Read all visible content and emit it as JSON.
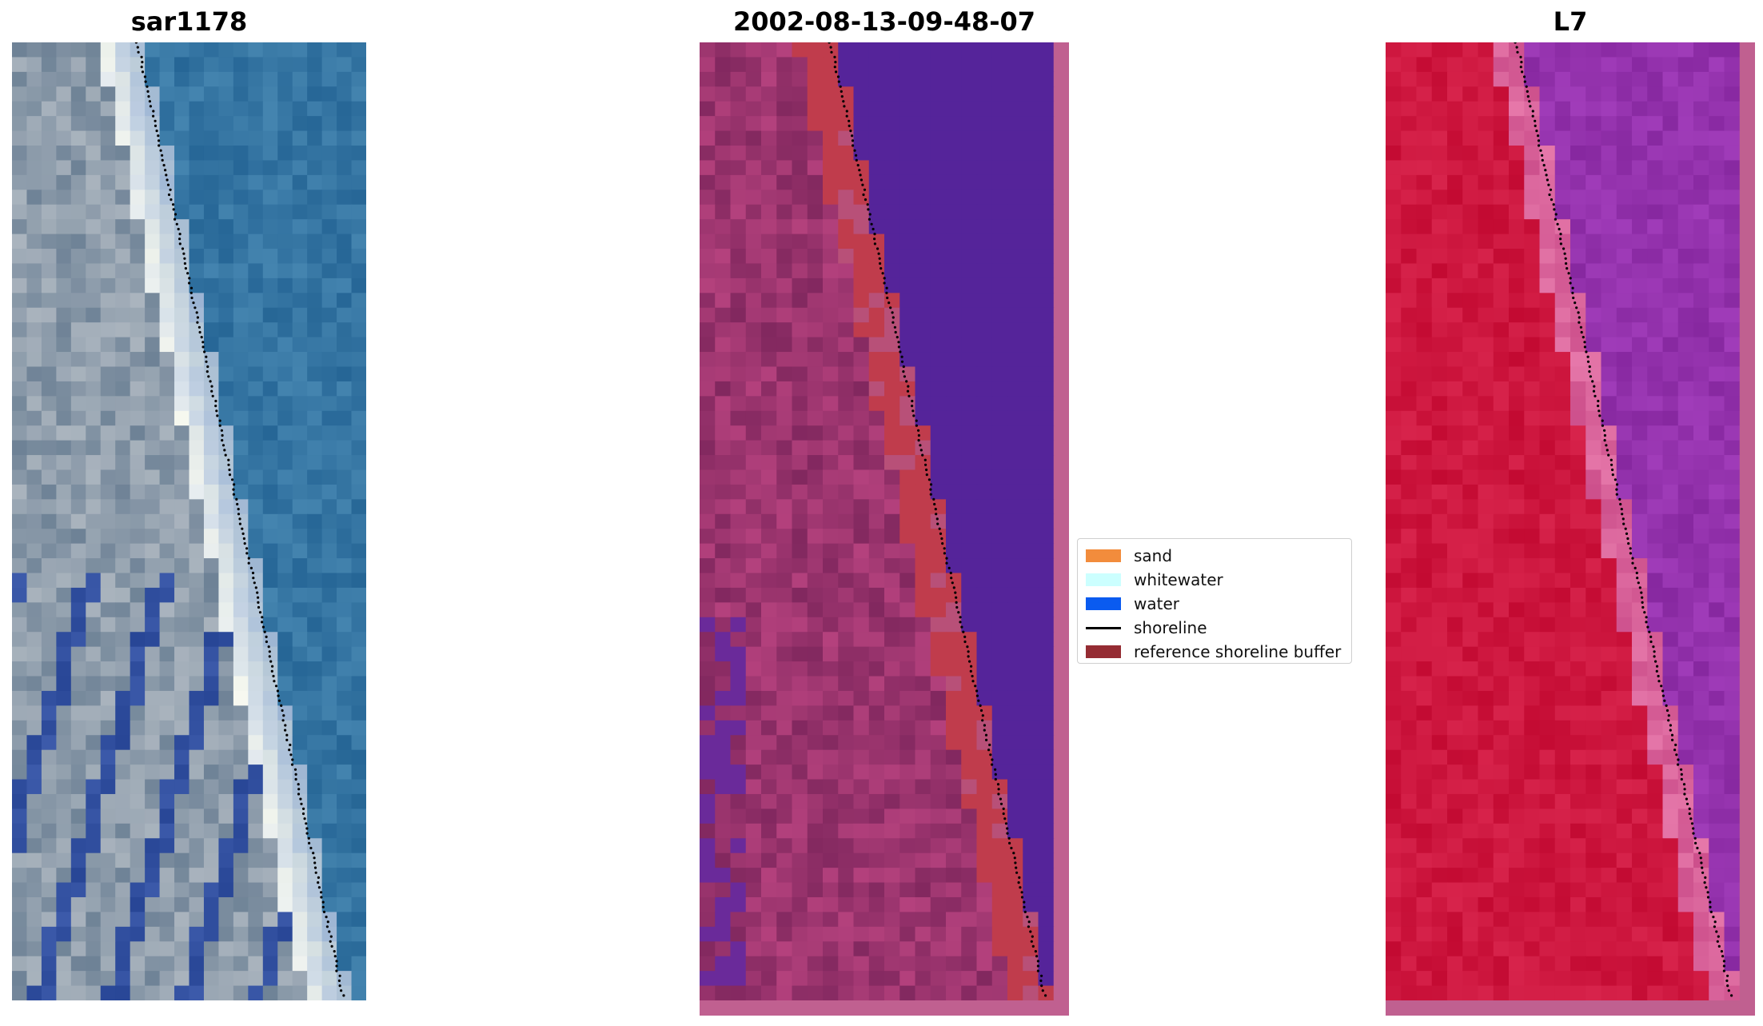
{
  "panels": [
    {
      "id": "rgb",
      "title": "sar1178"
    },
    {
      "id": "classified",
      "title": "2002-08-13-09-48-07"
    },
    {
      "id": "index",
      "title": "L7"
    }
  ],
  "legend": {
    "items": [
      {
        "label": "sand",
        "color": "#f28c3c"
      },
      {
        "label": "whitewater",
        "color": "#ccffff"
      },
      {
        "label": "water",
        "color": "#0a5bf0"
      },
      {
        "label": "shoreline",
        "color": "#000000"
      },
      {
        "label": "reference shoreline buffer",
        "color": "#952c33"
      }
    ]
  }
}
